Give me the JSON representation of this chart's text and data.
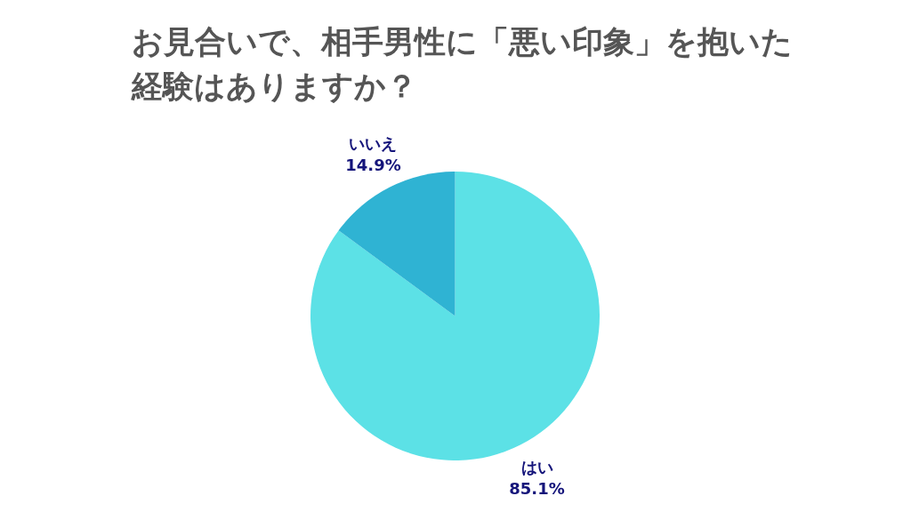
{
  "chart_data": {
    "type": "pie",
    "title": "お見合いで、相手男性に「悪い印象」を抱いた経験はありますか？",
    "categories": [
      "はい",
      "いいえ"
    ],
    "values": [
      85.1,
      14.9
    ],
    "colors": [
      "#5ce1e6",
      "#2fb3d3"
    ],
    "value_labels": [
      "85.1%",
      "14.9%"
    ]
  }
}
